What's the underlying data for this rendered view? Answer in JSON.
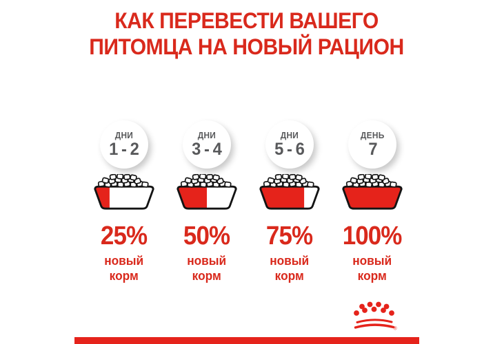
{
  "title": {
    "line1": "КАК ПЕРЕВЕСТИ ВАШЕГО",
    "line2": "ПИТОМЦА НА НОВЫЙ РАЦИОН"
  },
  "columns": [
    {
      "days_label": "ДНИ",
      "days_value": "1 - 2",
      "percent_label": "25%",
      "new_food_percent": 25,
      "food_line1": "новый",
      "food_line2": "корм"
    },
    {
      "days_label": "ДНИ",
      "days_value": "3 - 4",
      "percent_label": "50%",
      "new_food_percent": 50,
      "food_line1": "новый",
      "food_line2": "корм"
    },
    {
      "days_label": "ДНИ",
      "days_value": "5 - 6",
      "percent_label": "75%",
      "new_food_percent": 75,
      "food_line1": "новый",
      "food_line2": "корм"
    },
    {
      "days_label": "ДЕНЬ",
      "days_value": "7",
      "percent_label": "100%",
      "new_food_percent": 100,
      "food_line1": "новый",
      "food_line2": "корм"
    }
  ],
  "brand": {
    "logo_icon": "royal-canin-crown",
    "registered_mark": "®"
  },
  "colors": {
    "brand_red": "#d9291c",
    "graphic_red": "#e5231b",
    "day_text_gray": "#58595b"
  }
}
